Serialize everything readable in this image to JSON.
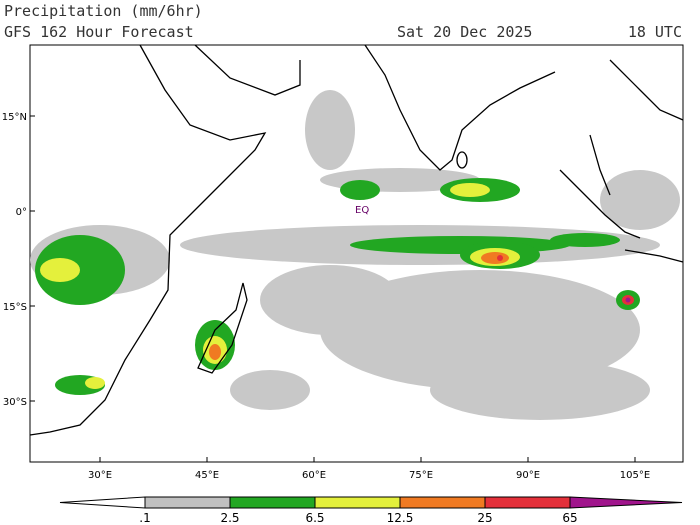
{
  "header": {
    "title": "Precipitation (mm/6hr)",
    "subtitle": "GFS 162 Hour Forecast",
    "date": "Sat 20 Dec 2025",
    "time": "18 UTC"
  },
  "map": {
    "annotation": "EQ",
    "lat_labels": [
      "15°N",
      "0°",
      "15°S",
      "30°S"
    ],
    "lon_labels": [
      "30°E",
      "45°E",
      "60°E",
      "75°E",
      "90°E",
      "105°E"
    ]
  },
  "colorbar": {
    "labels": [
      ".1",
      "2.5",
      "6.5",
      "12.5",
      "25",
      "65"
    ],
    "colors": [
      "#ffffff",
      "#c0c0c0",
      "#22a722",
      "#e4f03c",
      "#f07a22",
      "#e4303a",
      "#a0148c"
    ]
  }
}
